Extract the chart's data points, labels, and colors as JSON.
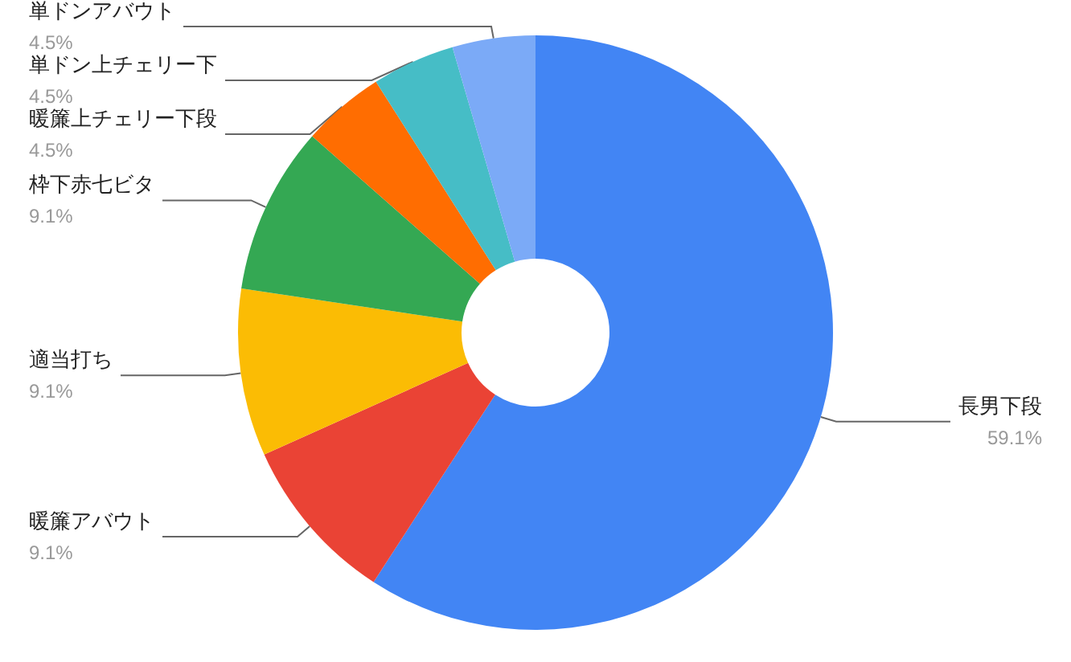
{
  "chart_data": {
    "type": "donut",
    "categories": [
      "長男下段",
      "暖簾アバウト",
      "適当打ち",
      "枠下赤七ビタ",
      "暖簾上チェリー下段",
      "単ドン上チェリー下",
      "単ドンアバウト"
    ],
    "values": [
      59.1,
      9.1,
      9.1,
      9.1,
      4.5,
      4.5,
      4.5
    ],
    "value_labels": [
      "59.1%",
      "9.1%",
      "9.1%",
      "9.1%",
      "4.5%",
      "4.5%",
      "4.5%"
    ],
    "colors": [
      "#4285f4",
      "#ea4335",
      "#fbbc04",
      "#34a853",
      "#ff6d01",
      "#46bdc6",
      "#7baaf7"
    ],
    "legend": false
  }
}
